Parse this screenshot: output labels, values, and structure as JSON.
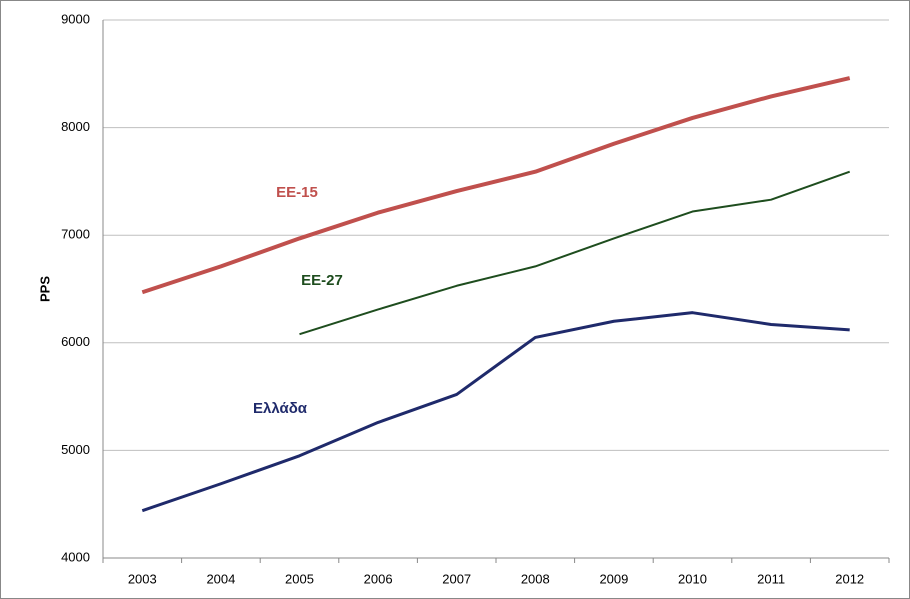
{
  "chart_data": {
    "type": "line",
    "y_label": "PPS",
    "categories": [
      "2003",
      "2004",
      "2005",
      "2006",
      "2007",
      "2008",
      "2009",
      "2010",
      "2011",
      "2012"
    ],
    "series": [
      {
        "name": "EE-15",
        "color": "#c0504d",
        "values": [
          6470,
          6710,
          6970,
          7210,
          7410,
          7590,
          7850,
          8090,
          8290,
          8460
        ]
      },
      {
        "name": "EE-27",
        "color": "#1e4d1e",
        "values": [
          null,
          null,
          6080,
          6310,
          6530,
          6710,
          6970,
          7220,
          7330,
          7590
        ]
      },
      {
        "name": "Ελλάδα",
        "color": "#1f2a6b",
        "values": [
          4440,
          4690,
          4950,
          5260,
          5520,
          6050,
          6200,
          6280,
          6170,
          6120
        ]
      }
    ],
    "ylim": [
      4000,
      9000
    ],
    "yticks": [
      4000,
      5000,
      6000,
      7000,
      8000,
      9000
    ],
    "grid": true
  }
}
